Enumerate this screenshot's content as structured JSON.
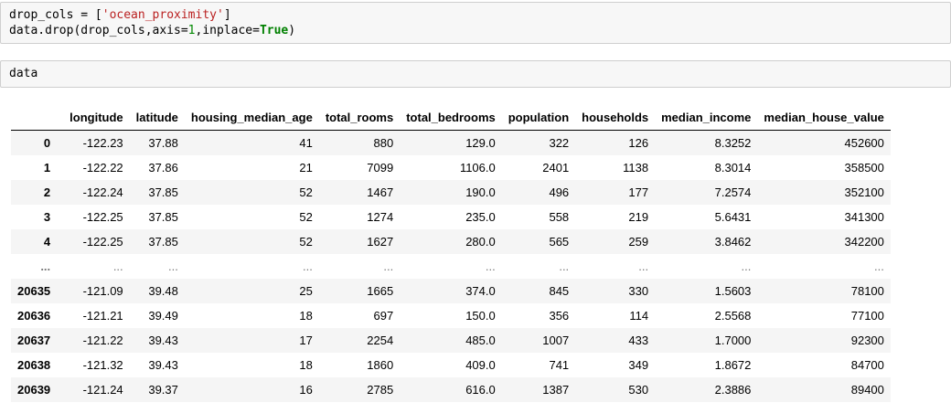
{
  "cells": [
    {
      "lines": [
        [
          "drop_cols = [",
          "'ocean_proximity'",
          "]"
        ],
        [
          "data.drop(drop_cols,axis=",
          "1",
          ",inplace=",
          "True",
          ")"
        ]
      ]
    },
    {
      "source": "data"
    }
  ],
  "table": {
    "columns": [
      "",
      "longitude",
      "latitude",
      "housing_median_age",
      "total_rooms",
      "total_bedrooms",
      "population",
      "households",
      "median_income",
      "median_house_value"
    ],
    "rows": [
      [
        "0",
        "-122.23",
        "37.88",
        "41",
        "880",
        "129.0",
        "322",
        "126",
        "8.3252",
        "452600"
      ],
      [
        "1",
        "-122.22",
        "37.86",
        "21",
        "7099",
        "1106.0",
        "2401",
        "1138",
        "8.3014",
        "358500"
      ],
      [
        "2",
        "-122.24",
        "37.85",
        "52",
        "1467",
        "190.0",
        "496",
        "177",
        "7.2574",
        "352100"
      ],
      [
        "3",
        "-122.25",
        "37.85",
        "52",
        "1274",
        "235.0",
        "558",
        "219",
        "5.6431",
        "341300"
      ],
      [
        "4",
        "-122.25",
        "37.85",
        "52",
        "1627",
        "280.0",
        "565",
        "259",
        "3.8462",
        "342200"
      ],
      [
        "...",
        "...",
        "...",
        "...",
        "...",
        "...",
        "...",
        "...",
        "...",
        "..."
      ],
      [
        "20635",
        "-121.09",
        "39.48",
        "25",
        "1665",
        "374.0",
        "845",
        "330",
        "1.5603",
        "78100"
      ],
      [
        "20636",
        "-121.21",
        "39.49",
        "18",
        "697",
        "150.0",
        "356",
        "114",
        "2.5568",
        "77100"
      ],
      [
        "20637",
        "-121.22",
        "39.43",
        "17",
        "2254",
        "485.0",
        "1007",
        "433",
        "1.7000",
        "92300"
      ],
      [
        "20638",
        "-121.32",
        "39.43",
        "18",
        "1860",
        "409.0",
        "741",
        "349",
        "1.8672",
        "84700"
      ],
      [
        "20639",
        "-121.24",
        "39.37",
        "16",
        "2785",
        "616.0",
        "1387",
        "530",
        "2.3886",
        "89400"
      ]
    ]
  }
}
